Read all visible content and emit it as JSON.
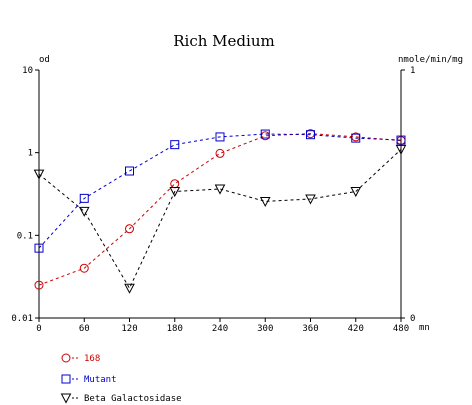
{
  "chart_data": {
    "type": "line",
    "title": "Rich Medium",
    "xlabel": "mn",
    "ylabel_left": "od",
    "ylabel_right": "nmole/min/mg",
    "x_ticks": [
      "0",
      "60",
      "120",
      "180",
      "240",
      "300",
      "360",
      "420",
      "480"
    ],
    "y_left_ticks": [
      "0.01",
      "0.1",
      "1",
      "10"
    ],
    "y_right_ticks": [
      "0",
      "1"
    ],
    "xlim": [
      0,
      480
    ],
    "y_left_scale": "log",
    "ylim_left": [
      0.01,
      10
    ],
    "ylim_right": [
      0,
      1
    ],
    "grid": false,
    "legend_position": "bottom-left",
    "series": [
      {
        "name": "168",
        "color": "#cc0000",
        "marker": "circle",
        "axis": "left",
        "x": [
          0,
          60,
          120,
          180,
          240,
          300,
          360,
          420,
          480
        ],
        "values": [
          0.025,
          0.04,
          0.12,
          0.42,
          0.98,
          1.6,
          1.7,
          1.55,
          1.4
        ]
      },
      {
        "name": "Mutant",
        "color": "#0000cc",
        "marker": "square",
        "axis": "left",
        "x": [
          0,
          60,
          120,
          180,
          240,
          300,
          360,
          420,
          480
        ],
        "values": [
          0.07,
          0.28,
          0.6,
          1.25,
          1.55,
          1.68,
          1.65,
          1.5,
          1.42
        ]
      },
      {
        "name": "Beta Galactosidase",
        "color": "#000000",
        "marker": "triangle-down",
        "axis": "right",
        "x": [
          0,
          60,
          120,
          180,
          240,
          300,
          360,
          420,
          480
        ],
        "values": [
          0.58,
          0.43,
          0.12,
          0.51,
          0.52,
          0.47,
          0.48,
          0.51,
          0.68
        ]
      }
    ]
  }
}
